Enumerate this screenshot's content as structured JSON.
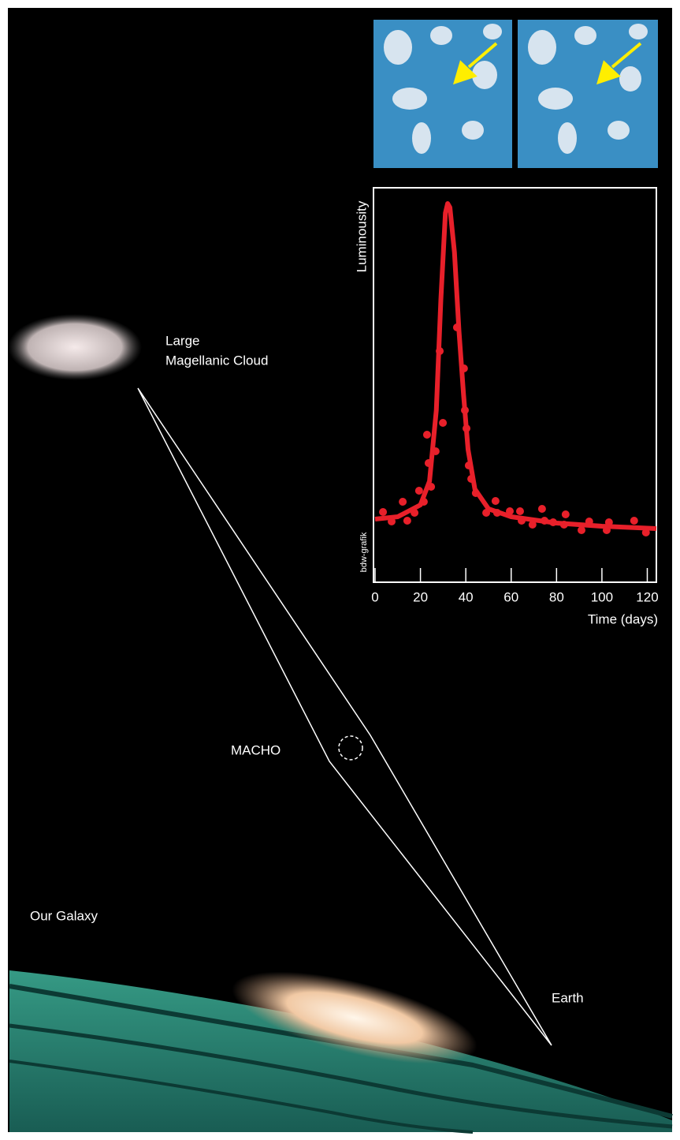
{
  "labels": {
    "lmc": [
      "Large",
      "Magellanic Cloud"
    ],
    "macho": "MACHO",
    "galaxy": "Our Galaxy",
    "earth": "Earth",
    "credit": "bdw-grafik"
  },
  "chart_data": {
    "type": "scatter",
    "xlabel": "Time (days)",
    "ylabel": "Luminousity",
    "xlim": [
      0,
      124
    ],
    "ylim": [
      0,
      100
    ],
    "xticks": [
      0,
      20,
      40,
      60,
      80,
      100,
      120
    ],
    "series": [
      {
        "type": "scatter",
        "color": "#e8202a",
        "x": [
          3.5,
          7.3,
          12.2,
          14.2,
          17.4,
          19.4,
          21.5,
          22.9,
          23.6,
          24.7,
          26.7,
          28.5,
          29.9,
          36.1,
          39.2,
          39.6,
          40.3,
          41.3,
          42.4,
          44.4,
          49,
          53.1,
          53.8,
          59.4,
          63.9,
          64.6,
          69.4,
          73.6,
          74.7,
          78.5,
          84,
          83.3,
          91,
          94.4,
          102.1,
          103.1,
          114.2,
          119.4
        ],
        "values": [
          17.8,
          15.4,
          20.4,
          15.6,
          17.6,
          23.2,
          20.4,
          37.4,
          30.2,
          24.2,
          33.2,
          58.6,
          40.4,
          64.6,
          54.2,
          43.6,
          39,
          29.6,
          26.2,
          22.6,
          17.6,
          20.6,
          17.6,
          18,
          18,
          15.6,
          14.6,
          18.6,
          15.6,
          15.2,
          17.2,
          14.6,
          13.2,
          15.4,
          13.2,
          15.2,
          15.6,
          12.6
        ]
      },
      {
        "type": "line",
        "color": "#e8202a",
        "x": [
          0,
          10,
          20,
          24,
          27,
          29,
          31,
          32,
          33,
          35,
          37,
          39,
          41,
          44,
          50,
          60,
          80,
          100,
          124
        ],
        "values": [
          16,
          16.6,
          19.6,
          25.6,
          43.6,
          71.6,
          93.6,
          96,
          95,
          83.6,
          63.6,
          47.6,
          33.6,
          23.6,
          18.6,
          16.6,
          15,
          14.2,
          13.6
        ]
      }
    ]
  }
}
